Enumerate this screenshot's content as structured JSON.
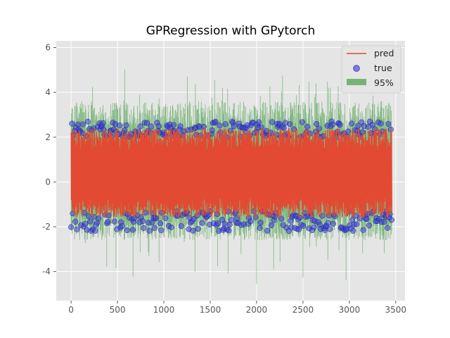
{
  "chart_data": {
    "type": "line",
    "title": "GPRegression with GPytorch",
    "xlabel": "",
    "ylabel": "",
    "xlim": [
      -160,
      3600
    ],
    "ylim": [
      -5.3,
      6.3
    ],
    "x_ticks": [
      0,
      500,
      1000,
      1500,
      2000,
      2500,
      3000,
      3500
    ],
    "y_ticks": [
      -4,
      -2,
      0,
      2,
      4,
      6
    ],
    "grid": true,
    "legend_position": "top-right",
    "n_points": 3460,
    "series": [
      {
        "name": "pred",
        "kind": "line",
        "color": "#e24a33",
        "description_range": [
          -1.6,
          2.4
        ]
      },
      {
        "name": "true",
        "kind": "scatter",
        "color": "#3f3fd8",
        "range": [
          -2.6,
          2.7
        ]
      },
      {
        "name": "95%",
        "kind": "confidence-band",
        "color": "#3a9a3a",
        "range": [
          -4.8,
          5.8
        ]
      }
    ]
  },
  "colors": {
    "background": "#e5e5e5",
    "grid": "#ffffff",
    "axis_text": "#555555",
    "title_text": "#000000"
  }
}
